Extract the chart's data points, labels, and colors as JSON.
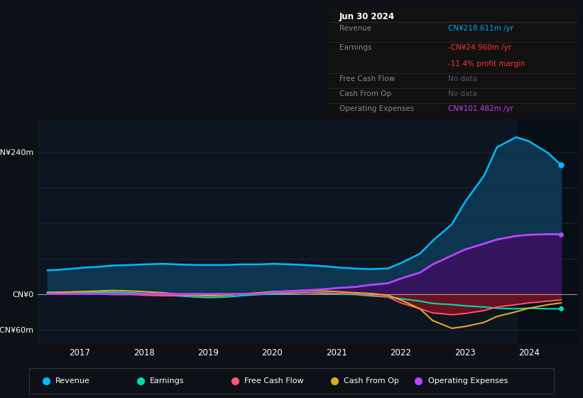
{
  "bg_color": "#0d1117",
  "plot_bg_color": "#0d1520",
  "grid_color": "#1a2535",
  "zero_line_color": "#cccccc",
  "title_box": {
    "date": "Jun 30 2024",
    "revenue_label": "Revenue",
    "revenue_value": "CN¥218.611m /yr",
    "revenue_color": "#00aaff",
    "earnings_label": "Earnings",
    "earnings_value": "-CN¥24.960m /yr",
    "earnings_color": "#ff3333",
    "margin_value": "-11.4% profit margin",
    "margin_color": "#ff3333",
    "fcf_label": "Free Cash Flow",
    "fcf_value": "No data",
    "cfo_label": "Cash From Op",
    "cfo_value": "No data",
    "opex_label": "Operating Expenses",
    "opex_value": "CN¥101.482m /yr",
    "opex_color": "#bb44ff",
    "nodata_color": "#555555",
    "label_color": "#888888"
  },
  "y_label_top": "CN¥240m",
  "y_label_zero": "CN¥0",
  "y_label_bottom": "-CN¥60m",
  "ylim": [
    -85,
    295
  ],
  "xlim": [
    2016.35,
    2024.75
  ],
  "x_ticks": [
    2017,
    2018,
    2019,
    2020,
    2021,
    2022,
    2023,
    2024
  ],
  "legend": [
    {
      "label": "Revenue",
      "color": "#00bbff"
    },
    {
      "label": "Earnings",
      "color": "#00ddaa"
    },
    {
      "label": "Free Cash Flow",
      "color": "#ff5577"
    },
    {
      "label": "Cash From Op",
      "color": "#ddaa22"
    },
    {
      "label": "Operating Expenses",
      "color": "#bb44ff"
    }
  ],
  "revenue": {
    "x": [
      2016.5,
      2016.7,
      2017.0,
      2017.3,
      2017.5,
      2017.8,
      2018.0,
      2018.3,
      2018.5,
      2018.8,
      2019.0,
      2019.3,
      2019.5,
      2019.8,
      2020.0,
      2020.3,
      2020.5,
      2020.8,
      2021.0,
      2021.3,
      2021.5,
      2021.8,
      2022.0,
      2022.3,
      2022.5,
      2022.8,
      2023.0,
      2023.3,
      2023.5,
      2023.8,
      2024.0,
      2024.3,
      2024.5
    ],
    "y": [
      40,
      41,
      44,
      46,
      48,
      49,
      50,
      51,
      50,
      49,
      49,
      49,
      50,
      50,
      51,
      50,
      49,
      47,
      45,
      43,
      42,
      43,
      52,
      68,
      90,
      118,
      155,
      200,
      248,
      265,
      258,
      238,
      218
    ],
    "color": "#00bbff",
    "fill_color": "#0d3550",
    "linewidth": 1.8
  },
  "earnings": {
    "x": [
      2016.5,
      2016.7,
      2017.0,
      2017.3,
      2017.5,
      2017.8,
      2018.0,
      2018.3,
      2018.5,
      2018.8,
      2019.0,
      2019.3,
      2019.5,
      2019.8,
      2020.0,
      2020.3,
      2020.5,
      2020.8,
      2021.0,
      2021.3,
      2021.5,
      2021.8,
      2022.0,
      2022.3,
      2022.5,
      2022.8,
      2023.0,
      2023.3,
      2023.5,
      2023.8,
      2024.0,
      2024.3,
      2024.5
    ],
    "y": [
      3,
      3,
      3,
      3,
      3,
      2,
      1,
      -1,
      -3,
      -5,
      -6,
      -5,
      -3,
      -1,
      0,
      1,
      2,
      1,
      0,
      -1,
      -3,
      -5,
      -8,
      -12,
      -16,
      -18,
      -20,
      -22,
      -24,
      -25,
      -24,
      -25,
      -25
    ],
    "color": "#00ddaa",
    "linewidth": 1.5
  },
  "free_cash_flow": {
    "x": [
      2016.5,
      2016.7,
      2017.0,
      2017.3,
      2017.5,
      2017.8,
      2018.0,
      2018.3,
      2018.5,
      2018.8,
      2019.0,
      2019.3,
      2019.5,
      2019.8,
      2020.0,
      2020.3,
      2020.5,
      2020.8,
      2021.0,
      2021.3,
      2021.5,
      2021.8,
      2022.0,
      2022.3,
      2022.5,
      2022.8,
      2023.0,
      2023.3,
      2023.5,
      2023.8,
      2024.0,
      2024.3,
      2024.5
    ],
    "y": [
      1,
      1,
      0,
      0,
      -1,
      -1,
      -2,
      -3,
      -3,
      -2,
      -2,
      -1,
      0,
      1,
      2,
      2,
      3,
      2,
      1,
      0,
      -2,
      -5,
      -15,
      -25,
      -32,
      -35,
      -33,
      -28,
      -22,
      -18,
      -15,
      -12,
      -10
    ],
    "color": "#ff5577",
    "fill_color": "#881122",
    "linewidth": 1.3
  },
  "cash_from_op": {
    "x": [
      2016.5,
      2016.7,
      2017.0,
      2017.3,
      2017.5,
      2017.8,
      2018.0,
      2018.3,
      2018.5,
      2018.8,
      2019.0,
      2019.3,
      2019.5,
      2019.8,
      2020.0,
      2020.3,
      2020.5,
      2020.8,
      2021.0,
      2021.3,
      2021.5,
      2021.8,
      2022.0,
      2022.3,
      2022.5,
      2022.8,
      2023.0,
      2023.3,
      2023.5,
      2023.8,
      2024.0,
      2024.3,
      2024.5
    ],
    "y": [
      2,
      3,
      4,
      5,
      6,
      5,
      4,
      2,
      0,
      -2,
      -3,
      -2,
      0,
      2,
      4,
      5,
      6,
      5,
      4,
      2,
      1,
      -2,
      -10,
      -25,
      -45,
      -58,
      -55,
      -48,
      -38,
      -30,
      -24,
      -18,
      -15
    ],
    "color": "#ddaa22",
    "linewidth": 1.5
  },
  "operating_expenses": {
    "x": [
      2016.5,
      2016.7,
      2017.0,
      2017.3,
      2017.5,
      2017.8,
      2018.0,
      2018.3,
      2018.5,
      2018.8,
      2019.0,
      2019.3,
      2019.5,
      2019.8,
      2020.0,
      2020.3,
      2020.5,
      2020.8,
      2021.0,
      2021.3,
      2021.5,
      2021.8,
      2022.0,
      2022.3,
      2022.5,
      2022.8,
      2023.0,
      2023.3,
      2023.5,
      2023.8,
      2024.0,
      2024.3,
      2024.5
    ],
    "y": [
      0,
      0,
      0,
      0,
      0,
      0,
      0,
      0,
      0,
      0,
      0,
      0,
      0,
      0,
      3,
      5,
      6,
      8,
      10,
      12,
      15,
      18,
      26,
      36,
      50,
      65,
      75,
      85,
      92,
      98,
      100,
      101,
      101
    ],
    "color": "#bb44ff",
    "fill_color": "#3a1060",
    "linewidth": 2.0
  },
  "highlight_x_start": 2023.83,
  "highlight_x_end": 2024.75
}
